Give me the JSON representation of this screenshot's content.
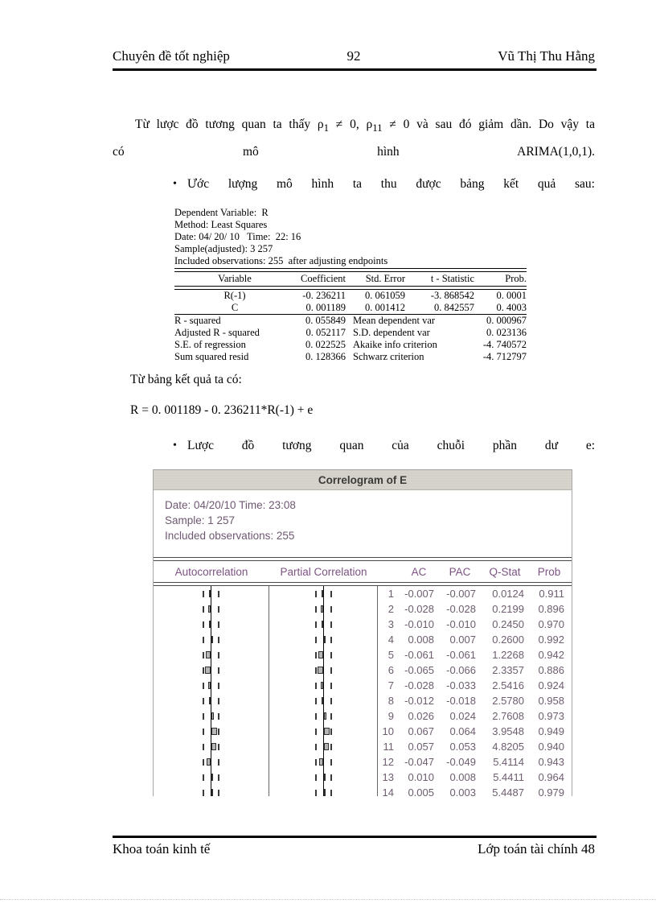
{
  "header": {
    "left": "Chuyên đề tốt nghiệp",
    "page_number": "92",
    "right": "Vũ Thị Thu Hằng"
  },
  "paragraph1": {
    "line1_pre": "Từ lược đồ tương quan ta thấy ρ",
    "sub1": "1",
    "line1_mid": " ≠ 0, ρ",
    "sub2": "11",
    "line1_post": " ≠ 0 và sau đó giảm dần. Do vậy ta",
    "line2": "có mô hình ARIMA(1,0,1)."
  },
  "bullet1": {
    "marker": "•",
    "text": "Ước lượng mô hình ta thu được bảng kết quả sau:"
  },
  "regression": {
    "info_lines": [
      "Dependent Variable:  R",
      "Method: Least Squares",
      "Date: 04/ 20/ 10   Time:  22: 16",
      "Sample(adjusted): 3 257",
      "Included observations: 255  after adjusting endpoints"
    ],
    "columns": [
      "Variable",
      "Coefficient",
      "Std. Error",
      "t - Statistic",
      "Prob."
    ],
    "rows": [
      {
        "variable": "R(-1)",
        "coefficient": "-0. 236211",
        "std_error": "0. 061059",
        "t_statistic": "-3. 868542",
        "prob": "0. 0001"
      },
      {
        "variable": "C",
        "coefficient": "0. 001189",
        "std_error": "0. 001412",
        "t_statistic": "0. 842557",
        "prob": "0. 4003"
      }
    ],
    "stats": [
      {
        "label": "R - squared",
        "value": "0. 055849",
        "label2": "Mean dependent var",
        "value2": "0. 000967"
      },
      {
        "label": "Adjusted R - squared",
        "value": "0. 052117",
        "label2": "S.D.  dependent var",
        "value2": "0. 023136"
      },
      {
        "label": "S.E.  of regression",
        "value": "0. 022525",
        "label2": "Akaike info criterion",
        "value2": "-4. 740572"
      },
      {
        "label": "Sum  squared resid",
        "value": "0. 128366",
        "label2": "Schwarz  criterion",
        "value2": "-4. 712797"
      }
    ]
  },
  "text_after_table": "Từ bảng kết quả ta có:",
  "equation": "R = 0. 001189 - 0. 236211*R(-1) + e",
  "bullet2": {
    "marker": "•",
    "text": "Lược đồ tương quan của chuỗi phần dư e:"
  },
  "correlogram": {
    "title": "Correlogram of E",
    "info_lines": [
      "Date: 04/20/10   Time: 23:08",
      "Sample: 1 257",
      "Included observations: 255"
    ],
    "columns": [
      "Autocorrelation",
      "Partial Correlation",
      "AC",
      "PAC",
      "Q-Stat",
      "Prob"
    ],
    "rows": [
      {
        "lag": "1",
        "ac": "-0.007",
        "pac": "-0.007",
        "q": "0.0124",
        "p": "0.911"
      },
      {
        "lag": "2",
        "ac": "-0.028",
        "pac": "-0.028",
        "q": "0.2199",
        "p": "0.896"
      },
      {
        "lag": "3",
        "ac": "-0.010",
        "pac": "-0.010",
        "q": "0.2450",
        "p": "0.970"
      },
      {
        "lag": "4",
        "ac": "0.008",
        "pac": "0.007",
        "q": "0.2600",
        "p": "0.992"
      },
      {
        "lag": "5",
        "ac": "-0.061",
        "pac": "-0.061",
        "q": "1.2268",
        "p": "0.942"
      },
      {
        "lag": "6",
        "ac": "-0.065",
        "pac": "-0.066",
        "q": "2.3357",
        "p": "0.886"
      },
      {
        "lag": "7",
        "ac": "-0.028",
        "pac": "-0.033",
        "q": "2.5416",
        "p": "0.924"
      },
      {
        "lag": "8",
        "ac": "-0.012",
        "pac": "-0.018",
        "q": "2.5780",
        "p": "0.958"
      },
      {
        "lag": "9",
        "ac": "0.026",
        "pac": "0.024",
        "q": "2.7608",
        "p": "0.973"
      },
      {
        "lag": "10",
        "ac": "0.067",
        "pac": "0.064",
        "q": "3.9548",
        "p": "0.949"
      },
      {
        "lag": "11",
        "ac": "0.057",
        "pac": "0.053",
        "q": "4.8205",
        "p": "0.940"
      },
      {
        "lag": "12",
        "ac": "-0.047",
        "pac": "-0.049",
        "q": "5.4114",
        "p": "0.943"
      },
      {
        "lag": "13",
        "ac": "0.010",
        "pac": "0.008",
        "q": "5.4411",
        "p": "0.964"
      },
      {
        "lag": "14",
        "ac": "0.005",
        "pac": "0.003",
        "q": "5.4487",
        "p": "0.979"
      }
    ]
  },
  "footer": {
    "left": "Khoa toán kinh tế",
    "right": "Lớp toán tài chính 48"
  },
  "colors": {
    "correlogram_header_text": "#7d5383",
    "correlogram_value_text": "#6d5d6f",
    "bar_fill": "#b5b5b5",
    "titlebar_bg": "#d5d2cb"
  },
  "chart_data": {
    "type": "bar",
    "title": "Correlogram of E",
    "orientation": "horizontal",
    "x": [
      1,
      2,
      3,
      4,
      5,
      6,
      7,
      8,
      9,
      10,
      11,
      12,
      13,
      14
    ],
    "series": [
      {
        "name": "AC",
        "values": [
          -0.007,
          -0.028,
          -0.01,
          0.008,
          -0.061,
          -0.065,
          -0.028,
          -0.012,
          0.026,
          0.067,
          0.057,
          -0.047,
          0.01,
          0.005
        ]
      },
      {
        "name": "PAC",
        "values": [
          -0.007,
          -0.028,
          -0.01,
          0.007,
          -0.061,
          -0.066,
          -0.033,
          -0.018,
          0.024,
          0.064,
          0.053,
          -0.049,
          0.008,
          0.003
        ]
      },
      {
        "name": "Q-Stat",
        "values": [
          0.0124,
          0.2199,
          0.245,
          0.26,
          1.2268,
          2.3357,
          2.5416,
          2.578,
          2.7608,
          3.9548,
          4.8205,
          5.4114,
          5.4411,
          5.4487
        ]
      },
      {
        "name": "Prob",
        "values": [
          0.911,
          0.896,
          0.97,
          0.992,
          0.942,
          0.886,
          0.924,
          0.958,
          0.973,
          0.949,
          0.94,
          0.943,
          0.964,
          0.979
        ]
      }
    ],
    "xlim": [
      -0.125,
      0.125
    ],
    "grid": false,
    "legend_position": "none"
  }
}
